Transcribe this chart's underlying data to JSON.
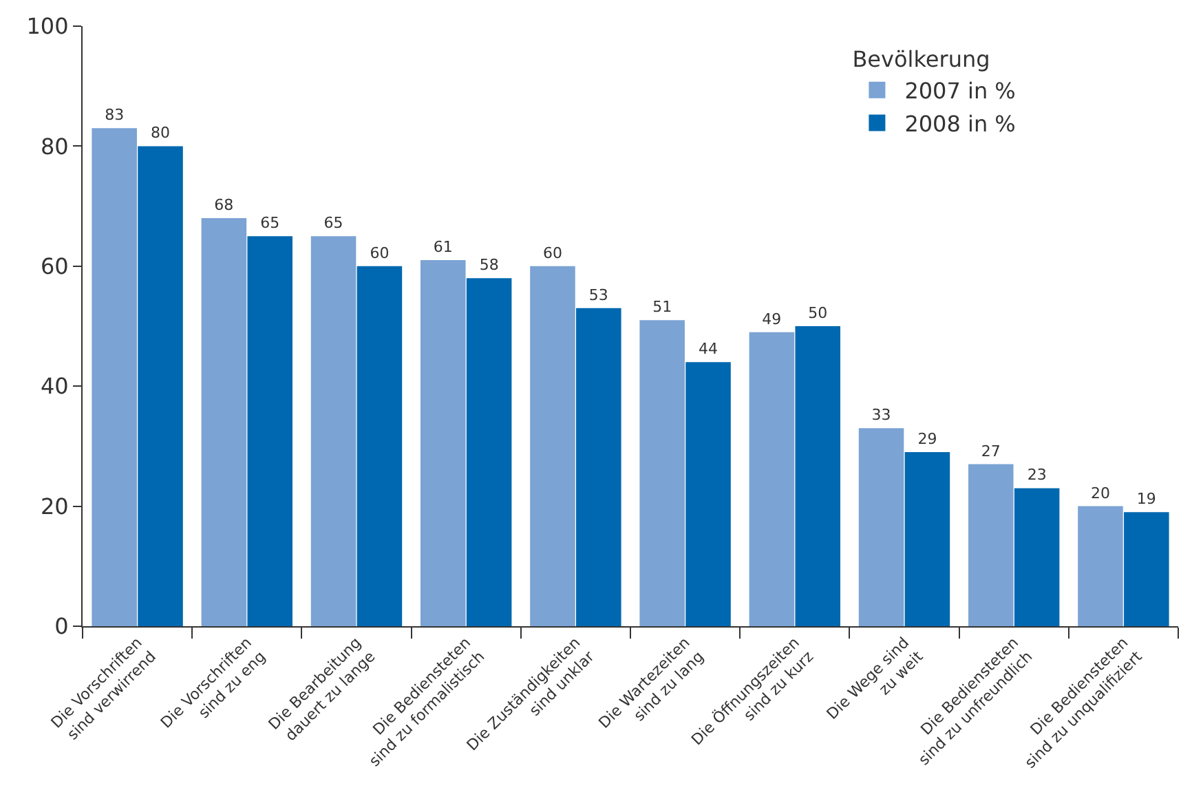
{
  "chart_data": {
    "type": "bar",
    "categories": [
      "Die Vorschriften\nsind verwirrend",
      "Die Vorschriften\nsind zu eng",
      "Die Bearbeitung\ndauert zu lange",
      "Die Bediensteten\nsind zu formalistisch",
      "Die Zuständigkeiten\nsind unklar",
      "Die Wartezeiten\nsind zu lang",
      "Die Öffnungszeiten\nsind zu kurz",
      "Die Wege sind\nzu weit",
      "Die Bediensteten\nsind zu unfreundlich",
      "Die Bediensteten\nsind zu unqualifiziert"
    ],
    "series": [
      {
        "name": "2007 in %",
        "color": "#7ba3d4",
        "values": [
          83,
          68,
          65,
          61,
          60,
          51,
          49,
          33,
          27,
          20
        ]
      },
      {
        "name": "2008 in %",
        "color": "#0068b0",
        "values": [
          80,
          65,
          60,
          58,
          53,
          44,
          50,
          29,
          23,
          19
        ]
      }
    ],
    "legend_title": "Bevölkerung",
    "ylim": [
      0,
      100
    ],
    "yticks": [
      0,
      20,
      40,
      60,
      80,
      100
    ],
    "data_labels": true,
    "legend": "top right"
  }
}
